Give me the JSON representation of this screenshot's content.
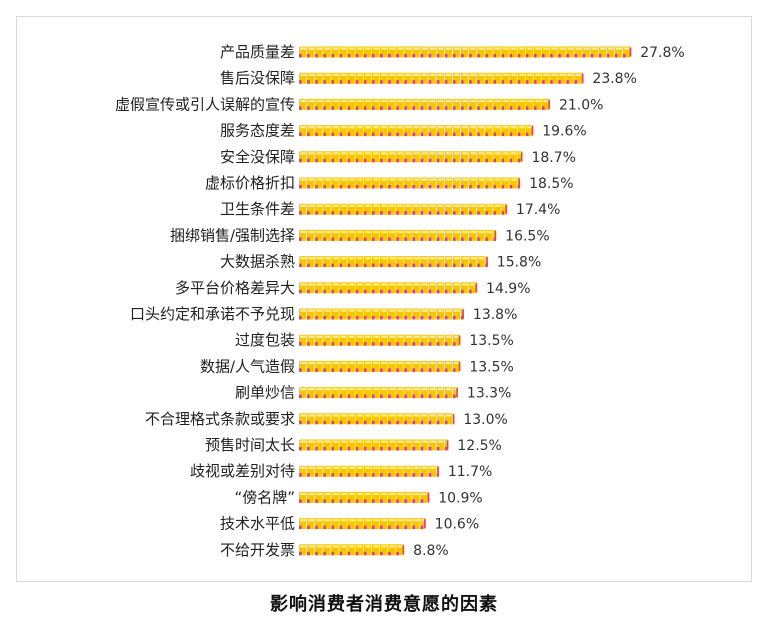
{
  "chart_data": {
    "type": "bar",
    "orientation": "horizontal",
    "title": "影响消费者消费意愿的因素",
    "categories": [
      "产品质量差",
      "售后没保障",
      "虚假宣传或引人误解的宣传",
      "服务态度差",
      "安全没保障",
      "虚标价格折扣",
      "卫生条件差",
      "捆绑销售/强制选择",
      "大数据杀熟",
      "多平台价格差异大",
      "口头约定和承诺不予兑现",
      "过度包装",
      "数据/人气造假",
      "刷单炒信",
      "不合理格式条款或要求",
      "预售时间太长",
      "歧视或差别对待",
      "“傍名牌”",
      "技术水平低",
      "不给开发票"
    ],
    "values": [
      27.8,
      23.8,
      21.0,
      19.6,
      18.7,
      18.5,
      17.4,
      16.5,
      15.8,
      14.9,
      13.8,
      13.5,
      13.5,
      13.3,
      13.0,
      12.5,
      11.7,
      10.9,
      10.6,
      8.8
    ],
    "value_labels": [
      "27.8%",
      "23.8%",
      "21.0%",
      "19.6%",
      "18.7%",
      "18.5%",
      "17.4%",
      "16.5%",
      "15.8%",
      "14.9%",
      "13.8%",
      "13.5%",
      "13.5%",
      "13.3%",
      "13.0%",
      "12.5%",
      "11.7%",
      "10.9%",
      "10.6%",
      "8.8%"
    ],
    "unit": "%",
    "xlim": [
      0,
      30
    ],
    "grid": false,
    "legend": "none",
    "colors": {
      "bar_fill": "#f7c600",
      "bar_accent": "#e23b7d",
      "bar_highlight": "#fff2a8"
    }
  }
}
